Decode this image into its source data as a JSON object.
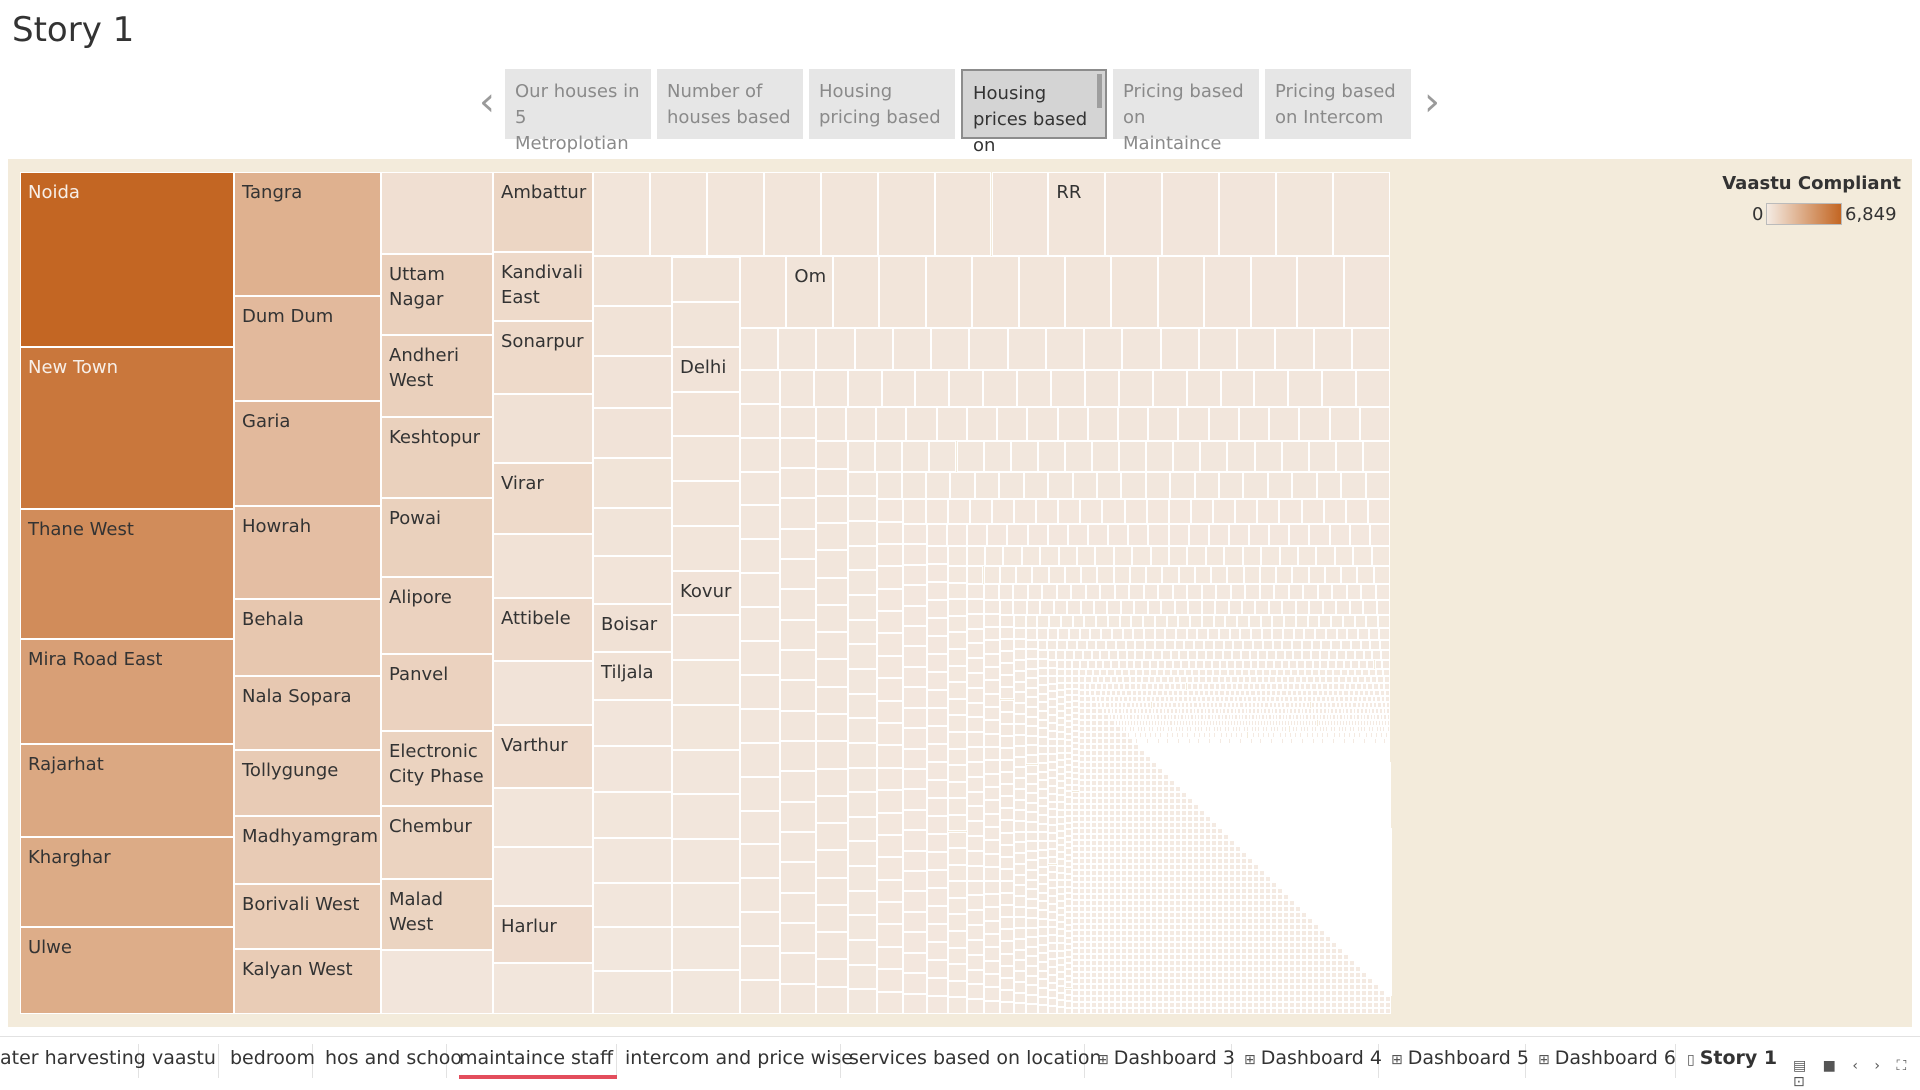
{
  "story": {
    "title": "Story 1"
  },
  "story_points": [
    {
      "label": "Our houses in 5 Metroplotian"
    },
    {
      "label": "Number of houses based"
    },
    {
      "label": "Housing pricing based"
    },
    {
      "label": "Housing prices based on"
    },
    {
      "label": "Pricing based on Maintaince"
    },
    {
      "label": "Pricing based on Intercom"
    }
  ],
  "active_story_point": 3,
  "legend": {
    "title": "Vaastu Compliant",
    "min": "0",
    "max": "6,849",
    "color_low": "#f4ebe3",
    "color_high": "#c36623"
  },
  "chart_data": {
    "type": "treemap",
    "measure": "Vaastu Compliant",
    "color_range": [
      0,
      6849
    ],
    "labeled_localities": [
      {
        "name": "Noida",
        "value": 6849
      },
      {
        "name": "New Town",
        "value": 5950
      },
      {
        "name": "Thane West",
        "value": 4900
      },
      {
        "name": "Mira Road East",
        "value": 3900
      },
      {
        "name": "Rajarhat",
        "value": 3450
      },
      {
        "name": "Kharghar",
        "value": 3300
      },
      {
        "name": "Ulwe",
        "value": 3200
      },
      {
        "name": "Tangra",
        "value": 3000
      },
      {
        "name": "Dum Dum",
        "value": 2550
      },
      {
        "name": "Garia",
        "value": 2550
      },
      {
        "name": "Howrah",
        "value": 2300
      },
      {
        "name": "Behala",
        "value": 1850
      },
      {
        "name": "Nala Sopara",
        "value": 1800
      },
      {
        "name": "Tollygunge",
        "value": 1650
      },
      {
        "name": "Madhyamgram",
        "value": 1650
      },
      {
        "name": "Borivali West",
        "value": 1600
      },
      {
        "name": "Kalyan West",
        "value": 1600
      },
      {
        "name": "Uttam Nagar",
        "value": 1400
      },
      {
        "name": "Andheri West",
        "value": 1400
      },
      {
        "name": "Keshtopur",
        "value": 1350
      },
      {
        "name": "Powai",
        "value": 1350
      },
      {
        "name": "Alipore",
        "value": 1300
      },
      {
        "name": "Panvel",
        "value": 1300
      },
      {
        "name": "Electronic City Phase",
        "value": 1250
      },
      {
        "name": "Chembur",
        "value": 1250
      },
      {
        "name": "Malad West",
        "value": 1200
      },
      {
        "name": "Ambattur",
        "value": 1100
      },
      {
        "name": "Kandivali East",
        "value": 900
      },
      {
        "name": "Sonarpur",
        "value": 900
      },
      {
        "name": "Virar",
        "value": 900
      },
      {
        "name": "Attibele",
        "value": 850
      },
      {
        "name": "Varthur",
        "value": 850
      },
      {
        "name": "Harlur",
        "value": 800
      },
      {
        "name": "Boisar",
        "value": 500
      },
      {
        "name": "Tiljala",
        "value": 480
      },
      {
        "name": "Delhi",
        "value": 400
      },
      {
        "name": "Kovur",
        "value": 400
      },
      {
        "name": "Om",
        "value": 350
      },
      {
        "name": "RR",
        "value": 330
      }
    ]
  },
  "tabs": [
    {
      "label": "ater harvesting"
    },
    {
      "label": "vaastu"
    },
    {
      "label": "bedroom"
    },
    {
      "label": "hos and schoo"
    },
    {
      "label": "maintaince staff"
    },
    {
      "label": "intercom and price wise"
    },
    {
      "label": "services based on location"
    },
    {
      "label": "Dashboard 3",
      "icon": "dashboard-icon"
    },
    {
      "label": "Dashboard 4",
      "icon": "dashboard-icon"
    },
    {
      "label": "Dashboard 5",
      "icon": "dashboard-icon"
    },
    {
      "label": "Dashboard 6",
      "icon": "dashboard-icon"
    },
    {
      "label": "Story 1",
      "icon": "story-icon"
    }
  ],
  "icons": {
    "prev": "chevron-left-icon",
    "next": "chevron-right-icon"
  }
}
